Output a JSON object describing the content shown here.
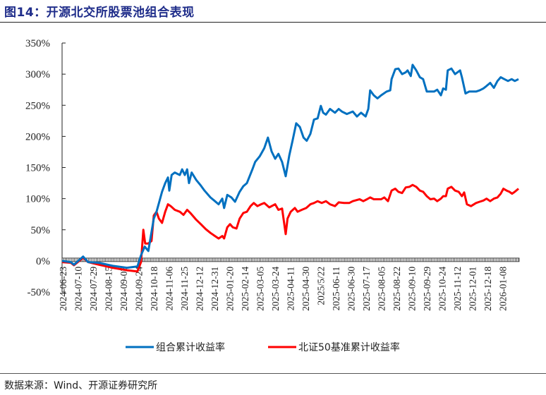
{
  "header": {
    "title": "图14：开源北交所股票池组合表现"
  },
  "footer": {
    "source": "数据来源：Wind、开源证券研究所"
  },
  "colors": {
    "portfolio": "#0070C0",
    "benchmark": "#FF0000",
    "title": "#1f2d8a"
  },
  "chart_data": {
    "type": "line",
    "title": "开源北交所股票池组合表现",
    "xlabel": "",
    "ylabel": "",
    "ylim": [
      -50,
      350
    ],
    "yticks": [
      "350%",
      "300%",
      "250%",
      "200%",
      "150%",
      "100%",
      "50%",
      "0%",
      "-50%"
    ],
    "grid": false,
    "legend_position": "bottom",
    "categories": [
      "2024-06-23",
      "2024-07-10",
      "2024-07-29",
      "2024-08-15",
      "2024-09-03",
      "2024-09-24",
      "2024-10-18",
      "2024-11-06",
      "2024-11-25",
      "2024-12-12",
      "2024-12-31",
      "2025-01-20",
      "2025-02-14",
      "2025-03-05",
      "2025-03-24",
      "2025-04-11",
      "2025-04-30",
      "2025/5/22",
      "2025-06-11",
      "2025-06-30",
      "2025-07-17",
      "2025-08-05",
      "2025-08-22",
      "2025-09-10",
      "2025-09-29",
      "2025-10-24",
      "2025-11-12",
      "2025-12-01",
      "2025-12-18",
      "2026-01-08"
    ],
    "x_fraction_note": "series points given as [x_fraction_of_plot_width, value_percent]",
    "series": [
      {
        "name": "组合累计收益率",
        "color": "#0070C0",
        "points": [
          [
            0.0,
            0
          ],
          [
            0.019,
            -2
          ],
          [
            0.026,
            -6
          ],
          [
            0.046,
            7
          ],
          [
            0.057,
            -2
          ],
          [
            0.08,
            -3
          ],
          [
            0.111,
            -8
          ],
          [
            0.142,
            -11
          ],
          [
            0.165,
            -9
          ],
          [
            0.173,
            9
          ],
          [
            0.181,
            23
          ],
          [
            0.189,
            16
          ],
          [
            0.201,
            68
          ],
          [
            0.207,
            79
          ],
          [
            0.219,
            111
          ],
          [
            0.226,
            125
          ],
          [
            0.232,
            134
          ],
          [
            0.235,
            113
          ],
          [
            0.24,
            138
          ],
          [
            0.247,
            142
          ],
          [
            0.258,
            138
          ],
          [
            0.263,
            147
          ],
          [
            0.269,
            138
          ],
          [
            0.274,
            147
          ],
          [
            0.278,
            125
          ],
          [
            0.284,
            142
          ],
          [
            0.294,
            130
          ],
          [
            0.304,
            121
          ],
          [
            0.312,
            113
          ],
          [
            0.325,
            102
          ],
          [
            0.335,
            96
          ],
          [
            0.343,
            91
          ],
          [
            0.351,
            100
          ],
          [
            0.355,
            85
          ],
          [
            0.362,
            106
          ],
          [
            0.371,
            102
          ],
          [
            0.379,
            95
          ],
          [
            0.389,
            111
          ],
          [
            0.397,
            120
          ],
          [
            0.405,
            125
          ],
          [
            0.417,
            147
          ],
          [
            0.423,
            159
          ],
          [
            0.433,
            168
          ],
          [
            0.443,
            181
          ],
          [
            0.451,
            198
          ],
          [
            0.459,
            176
          ],
          [
            0.467,
            164
          ],
          [
            0.474,
            172
          ],
          [
            0.482,
            159
          ],
          [
            0.49,
            136
          ],
          [
            0.498,
            170
          ],
          [
            0.505,
            193
          ],
          [
            0.513,
            221
          ],
          [
            0.521,
            215
          ],
          [
            0.529,
            198
          ],
          [
            0.536,
            193
          ],
          [
            0.544,
            204
          ],
          [
            0.552,
            227
          ],
          [
            0.56,
            229
          ],
          [
            0.567,
            249
          ],
          [
            0.572,
            238
          ],
          [
            0.578,
            235
          ],
          [
            0.587,
            244
          ],
          [
            0.598,
            238
          ],
          [
            0.606,
            244
          ],
          [
            0.613,
            240
          ],
          [
            0.624,
            236
          ],
          [
            0.637,
            240
          ],
          [
            0.646,
            232
          ],
          [
            0.655,
            238
          ],
          [
            0.665,
            232
          ],
          [
            0.671,
            244
          ],
          [
            0.675,
            274
          ],
          [
            0.683,
            266
          ],
          [
            0.691,
            261
          ],
          [
            0.699,
            266
          ],
          [
            0.711,
            272
          ],
          [
            0.719,
            274
          ],
          [
            0.722,
            292
          ],
          [
            0.73,
            308
          ],
          [
            0.737,
            309
          ],
          [
            0.745,
            300
          ],
          [
            0.753,
            303
          ],
          [
            0.757,
            306
          ],
          [
            0.764,
            297
          ],
          [
            0.768,
            315
          ],
          [
            0.776,
            306
          ],
          [
            0.784,
            295
          ],
          [
            0.791,
            292
          ],
          [
            0.799,
            272
          ],
          [
            0.807,
            272
          ],
          [
            0.815,
            272
          ],
          [
            0.822,
            275
          ],
          [
            0.83,
            266
          ],
          [
            0.835,
            277
          ],
          [
            0.841,
            275
          ],
          [
            0.845,
            306
          ],
          [
            0.853,
            309
          ],
          [
            0.861,
            300
          ],
          [
            0.872,
            306
          ],
          [
            0.876,
            295
          ],
          [
            0.884,
            269
          ],
          [
            0.892,
            272
          ],
          [
            0.9,
            272
          ],
          [
            0.907,
            272
          ],
          [
            0.915,
            274
          ],
          [
            0.923,
            277
          ],
          [
            0.93,
            281
          ],
          [
            0.938,
            286
          ],
          [
            0.946,
            278
          ],
          [
            0.954,
            289
          ],
          [
            0.961,
            295
          ],
          [
            0.969,
            292
          ],
          [
            0.977,
            289
          ],
          [
            0.985,
            292
          ],
          [
            0.992,
            289
          ],
          [
            1.0,
            292
          ]
        ]
      },
      {
        "name": "北证50基准累计收益率",
        "color": "#FF0000",
        "points": [
          [
            0.0,
            -2
          ],
          [
            0.019,
            -3
          ],
          [
            0.026,
            -7
          ],
          [
            0.046,
            5
          ],
          [
            0.057,
            -2
          ],
          [
            0.08,
            -6
          ],
          [
            0.111,
            -11
          ],
          [
            0.142,
            -15
          ],
          [
            0.165,
            -17
          ],
          [
            0.173,
            -2
          ],
          [
            0.178,
            50
          ],
          [
            0.182,
            28
          ],
          [
            0.189,
            28
          ],
          [
            0.196,
            32
          ],
          [
            0.201,
            73
          ],
          [
            0.207,
            79
          ],
          [
            0.212,
            68
          ],
          [
            0.219,
            61
          ],
          [
            0.226,
            79
          ],
          [
            0.232,
            91
          ],
          [
            0.238,
            88
          ],
          [
            0.247,
            82
          ],
          [
            0.258,
            79
          ],
          [
            0.266,
            74
          ],
          [
            0.274,
            82
          ],
          [
            0.281,
            77
          ],
          [
            0.294,
            66
          ],
          [
            0.304,
            59
          ],
          [
            0.315,
            51
          ],
          [
            0.325,
            45
          ],
          [
            0.335,
            40
          ],
          [
            0.343,
            36
          ],
          [
            0.351,
            40
          ],
          [
            0.355,
            36
          ],
          [
            0.362,
            54
          ],
          [
            0.368,
            59
          ],
          [
            0.374,
            54
          ],
          [
            0.382,
            52
          ],
          [
            0.389,
            68
          ],
          [
            0.397,
            77
          ],
          [
            0.405,
            79
          ],
          [
            0.413,
            88
          ],
          [
            0.42,
            93
          ],
          [
            0.428,
            88
          ],
          [
            0.436,
            91
          ],
          [
            0.443,
            93
          ],
          [
            0.454,
            86
          ],
          [
            0.467,
            91
          ],
          [
            0.474,
            82
          ],
          [
            0.482,
            84
          ],
          [
            0.49,
            43
          ],
          [
            0.494,
            68
          ],
          [
            0.501,
            79
          ],
          [
            0.51,
            85
          ],
          [
            0.516,
            79
          ],
          [
            0.525,
            82
          ],
          [
            0.535,
            85
          ],
          [
            0.544,
            91
          ],
          [
            0.552,
            93
          ],
          [
            0.56,
            96
          ],
          [
            0.569,
            93
          ],
          [
            0.578,
            96
          ],
          [
            0.587,
            91
          ],
          [
            0.598,
            88
          ],
          [
            0.606,
            94
          ],
          [
            0.618,
            93
          ],
          [
            0.629,
            93
          ],
          [
            0.637,
            96
          ],
          [
            0.652,
            99
          ],
          [
            0.66,
            96
          ],
          [
            0.668,
            99
          ],
          [
            0.675,
            102
          ],
          [
            0.683,
            99
          ],
          [
            0.699,
            99
          ],
          [
            0.706,
            102
          ],
          [
            0.714,
            96
          ],
          [
            0.722,
            113
          ],
          [
            0.73,
            116
          ],
          [
            0.737,
            111
          ],
          [
            0.745,
            109
          ],
          [
            0.753,
            118
          ],
          [
            0.761,
            119
          ],
          [
            0.768,
            122
          ],
          [
            0.776,
            119
          ],
          [
            0.784,
            113
          ],
          [
            0.791,
            111
          ],
          [
            0.799,
            104
          ],
          [
            0.807,
            99
          ],
          [
            0.815,
            100
          ],
          [
            0.822,
            96
          ],
          [
            0.83,
            100
          ],
          [
            0.835,
            104
          ],
          [
            0.841,
            104
          ],
          [
            0.845,
            116
          ],
          [
            0.853,
            119
          ],
          [
            0.861,
            113
          ],
          [
            0.869,
            111
          ],
          [
            0.876,
            104
          ],
          [
            0.881,
            110
          ],
          [
            0.887,
            91
          ],
          [
            0.896,
            88
          ],
          [
            0.907,
            93
          ],
          [
            0.915,
            95
          ],
          [
            0.923,
            97
          ],
          [
            0.93,
            100
          ],
          [
            0.938,
            96
          ],
          [
            0.946,
            100
          ],
          [
            0.954,
            102
          ],
          [
            0.961,
            108
          ],
          [
            0.967,
            116
          ],
          [
            0.974,
            113
          ],
          [
            0.98,
            111
          ],
          [
            0.986,
            108
          ],
          [
            0.992,
            111
          ],
          [
            1.0,
            116
          ]
        ]
      }
    ]
  },
  "legend": {
    "items": [
      {
        "label": "组合累计收益率",
        "color": "#0070C0"
      },
      {
        "label": "北证50基准累计收益率",
        "color": "#FF0000"
      }
    ]
  }
}
